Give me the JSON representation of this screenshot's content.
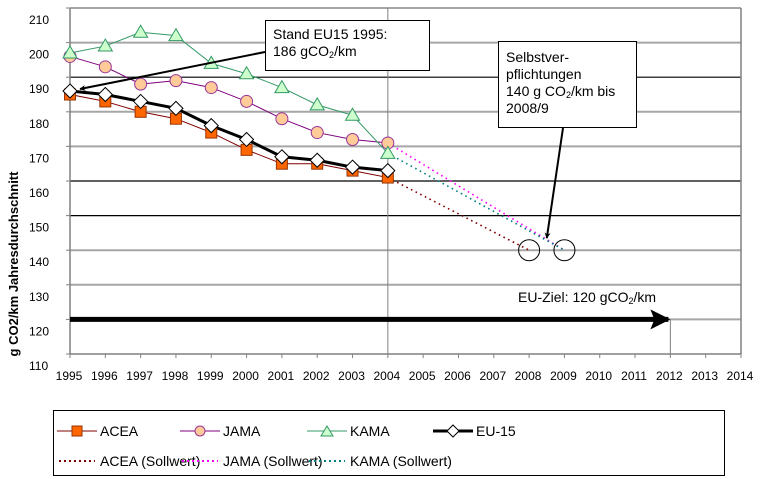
{
  "chart_data": {
    "type": "line",
    "title": "",
    "xlabel": "",
    "ylabel": "g CO2/km Jahresdurchschnitt",
    "xlim": [
      1995,
      2014
    ],
    "ylim": [
      110,
      210
    ],
    "x_ticks": [
      1995,
      1996,
      1997,
      1998,
      1999,
      2000,
      2001,
      2002,
      2003,
      2004,
      2005,
      2006,
      2007,
      2008,
      2009,
      2010,
      2011,
      2012,
      2013,
      2014
    ],
    "y_ticks": [
      110,
      120,
      130,
      140,
      150,
      160,
      170,
      180,
      190,
      200,
      210
    ],
    "grid": true,
    "gridlines": [
      {
        "value": 120,
        "color": "#a6a6a6"
      },
      {
        "value": 130,
        "color": "#a6a6a6"
      },
      {
        "value": 140,
        "color": "#a6a6a6"
      },
      {
        "value": 150,
        "color": "#000000"
      },
      {
        "value": 160,
        "color": "#000000"
      },
      {
        "value": 170,
        "color": "#a6a6a6"
      },
      {
        "value": 180,
        "color": "#a6a6a6"
      },
      {
        "value": 190,
        "color": "#000000"
      },
      {
        "value": 200,
        "color": "#a6a6a6"
      },
      {
        "value": 210,
        "color": "#a6a6a6"
      }
    ],
    "vertical_lines": [
      {
        "x": 2004,
        "color": "#808080"
      },
      {
        "x": 2012,
        "color": "#808080",
        "to": 120
      }
    ],
    "x": [
      1995,
      1996,
      1997,
      1998,
      1999,
      2000,
      2001,
      2002,
      2003,
      2004
    ],
    "series": [
      {
        "name": "ACEA",
        "key": "acea",
        "color": "#800000",
        "marker": "square",
        "marker_fill": "#ff6600",
        "marker_stroke": "#993300",
        "width": 1,
        "values": [
          185,
          183,
          180,
          178,
          174,
          169,
          165,
          165,
          163,
          161
        ]
      },
      {
        "name": "JAMA",
        "key": "jama",
        "color": "#800080",
        "marker": "circle",
        "marker_fill": "#ffcc99",
        "marker_stroke": "#993399",
        "width": 1,
        "values": [
          196,
          193,
          188,
          189,
          187,
          183,
          178,
          174,
          172,
          171
        ]
      },
      {
        "name": "KAMA",
        "key": "kama",
        "color": "#339966",
        "marker": "triangle",
        "marker_fill": "#ccffcc",
        "marker_stroke": "#339966",
        "width": 1,
        "values": [
          197,
          199,
          203,
          202,
          194,
          191,
          187,
          182,
          179,
          168
        ]
      },
      {
        "name": "EU-15",
        "key": "eu15",
        "color": "#000000",
        "marker": "diamond",
        "marker_fill": "#ffffff",
        "marker_stroke": "#000000",
        "width": 3,
        "values": [
          186,
          185,
          183,
          181,
          176,
          172,
          167,
          166,
          164,
          163
        ]
      }
    ],
    "target_series": [
      {
        "name": "ACEA (Sollwert)",
        "key": "acea_soll",
        "color": "#800000",
        "x": [
          2004,
          2008
        ],
        "values": [
          161,
          140
        ]
      },
      {
        "name": "JAMA (Sollwert)",
        "key": "jama_soll",
        "color": "#ff00ff",
        "x": [
          2004,
          2009
        ],
        "values": [
          171,
          140
        ]
      },
      {
        "name": "KAMA (Sollwert)",
        "key": "kama_soll",
        "color": "#008080",
        "x": [
          2004,
          2009
        ],
        "values": [
          168,
          140
        ]
      }
    ],
    "target_circles": [
      {
        "x": 2008,
        "y": 140
      },
      {
        "x": 2009,
        "y": 140
      }
    ],
    "goal_arrow": {
      "from_x": 1995,
      "to_x": 2012,
      "y": 120
    },
    "annotations": [
      {
        "key": "stand",
        "lines": [
          "Stand EU15 1995:",
          "186 gCO|2|/km"
        ],
        "points_to": {
          "x": 1995,
          "y": 186
        }
      },
      {
        "key": "selbst",
        "lines": [
          "Selbstver-",
          "pflichtungen",
          "140 g CO|2|/km bis",
          "2008/9"
        ],
        "points_to": {
          "x": 2008.5,
          "y": 140
        }
      },
      {
        "key": "goal",
        "lines": [
          "EU-Ziel: 120 gCO|2|/km"
        ]
      }
    ],
    "legend": {
      "placement": "bottom",
      "rows": [
        [
          "ACEA",
          "JAMA",
          "KAMA",
          "EU-15"
        ],
        [
          "ACEA (Sollwert)",
          "JAMA (Sollwert)",
          "KAMA (Sollwert)"
        ]
      ]
    }
  },
  "annotations": {
    "stand": {
      "line1": "Stand EU15 1995:",
      "line2_pre": "186 gCO",
      "line2_sub": "2",
      "line2_post": "/km"
    },
    "selbst": {
      "line1": "Selbstver-",
      "line2": "pflichtungen",
      "line3_pre": "140 g CO",
      "line3_sub": "2",
      "line3_post": "/km bis",
      "line4": "2008/9"
    },
    "goal": {
      "pre": "EU-Ziel: 120 gCO",
      "sub": "2",
      "post": "/km"
    }
  },
  "legend": {
    "acea": "ACEA",
    "jama": "JAMA",
    "kama": "KAMA",
    "eu15": "EU-15",
    "acea_soll": "ACEA (Sollwert)",
    "jama_soll": "JAMA (Sollwert)",
    "kama_soll": "KAMA (Sollwert)"
  }
}
